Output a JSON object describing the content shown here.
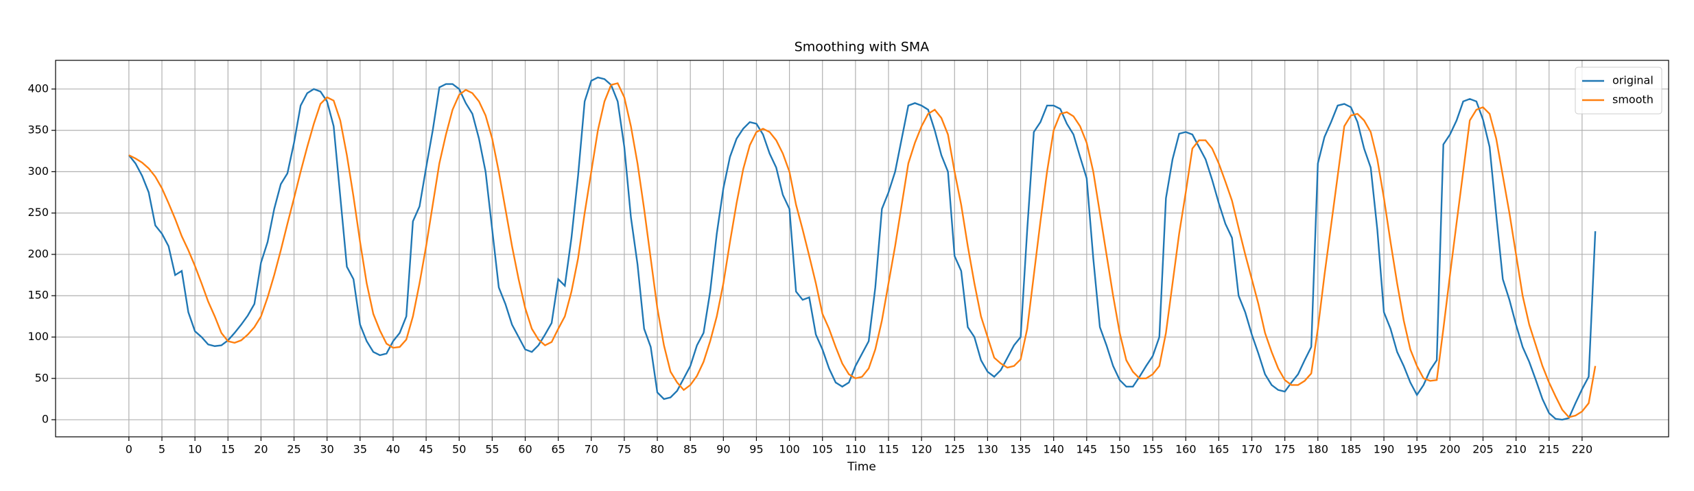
{
  "chart_data": {
    "type": "line",
    "title": "Smoothing with SMA",
    "x_label": "Time",
    "x": [
      0,
      1,
      2,
      3,
      4,
      5,
      6,
      7,
      8,
      9,
      10,
      11,
      12,
      13,
      14,
      15,
      16,
      17,
      18,
      19,
      20,
      21,
      22,
      23,
      24,
      25,
      26,
      27,
      28,
      29,
      30,
      31,
      32,
      33,
      34,
      35,
      36,
      37,
      38,
      39,
      40,
      41,
      42,
      43,
      44,
      45,
      46,
      47,
      48,
      49,
      50,
      51,
      52,
      53,
      54,
      55,
      56,
      57,
      58,
      59,
      60,
      61,
      62,
      63,
      64,
      65,
      66,
      67,
      68,
      69,
      70,
      71,
      72,
      73,
      74,
      75,
      76,
      77,
      78,
      79,
      80,
      81,
      82,
      83,
      84,
      85,
      86,
      87,
      88,
      89,
      90,
      91,
      92,
      93,
      94,
      95,
      96,
      97,
      98,
      99,
      100,
      101,
      102,
      103,
      104,
      105,
      106,
      107,
      108,
      109,
      110,
      111,
      112,
      113,
      114,
      115,
      116,
      117,
      118,
      119,
      120,
      121,
      122,
      123,
      124,
      125,
      126,
      127,
      128,
      129,
      130,
      131,
      132,
      133,
      134,
      135,
      136,
      137,
      138,
      139,
      140,
      141,
      142,
      143,
      144,
      145,
      146,
      147,
      148,
      149,
      150,
      151,
      152,
      153,
      154,
      155,
      156,
      157,
      158,
      159,
      160,
      161,
      162,
      163,
      164,
      165,
      166,
      167,
      168,
      169,
      170,
      171,
      172,
      173,
      174,
      175,
      176,
      177,
      178,
      179,
      180,
      181,
      182,
      183,
      184,
      185,
      186,
      187,
      188,
      189,
      190,
      191,
      192,
      193,
      194,
      195,
      196,
      197,
      198,
      199,
      200,
      201,
      202,
      203,
      204,
      205,
      206,
      207,
      208,
      209,
      210,
      211,
      212,
      213,
      214,
      215,
      216,
      217,
      218,
      219,
      220,
      221,
      222
    ],
    "series": [
      {
        "name": "original",
        "color": "#1f77b4",
        "values": [
          320,
          310,
          295,
          275,
          235,
          225,
          210,
          175,
          180,
          130,
          107,
          100,
          91,
          89,
          90,
          96,
          105,
          115,
          126,
          140,
          190,
          215,
          255,
          285,
          298,
          335,
          380,
          395,
          400,
          397,
          385,
          355,
          270,
          185,
          170,
          115,
          95,
          82,
          78,
          80,
          95,
          105,
          125,
          240,
          258,
          305,
          350,
          402,
          406,
          406,
          400,
          383,
          370,
          340,
          300,
          230,
          160,
          140,
          115,
          100,
          85,
          82,
          90,
          103,
          117,
          170,
          162,
          220,
          295,
          385,
          410,
          414,
          412,
          405,
          385,
          330,
          245,
          188,
          110,
          88,
          33,
          25,
          27,
          35,
          50,
          65,
          90,
          105,
          155,
          225,
          280,
          318,
          340,
          352,
          360,
          358,
          345,
          322,
          305,
          272,
          255,
          155,
          145,
          148,
          103,
          85,
          62,
          45,
          40,
          45,
          65,
          80,
          95,
          160,
          255,
          275,
          300,
          340,
          380,
          383,
          380,
          375,
          350,
          320,
          300,
          198,
          180,
          112,
          100,
          72,
          58,
          52,
          60,
          75,
          90,
          100,
          230,
          348,
          360,
          380,
          380,
          376,
          358,
          345,
          318,
          292,
          195,
          112,
          90,
          65,
          48,
          40,
          40,
          52,
          65,
          77,
          100,
          268,
          315,
          346,
          348,
          345,
          330,
          315,
          290,
          262,
          237,
          220,
          150,
          130,
          103,
          80,
          55,
          42,
          36,
          34,
          45,
          55,
          72,
          88,
          310,
          342,
          360,
          380,
          382,
          378,
          360,
          328,
          305,
          230,
          130,
          110,
          82,
          65,
          45,
          30,
          42,
          60,
          72,
          333,
          345,
          362,
          385,
          388,
          385,
          363,
          330,
          248,
          170,
          145,
          115,
          88,
          70,
          48,
          25,
          8,
          1,
          0,
          2,
          20,
          37,
          52,
          228
        ]
      },
      {
        "name": "smooth",
        "color": "#ff7f0e",
        "values": [
          320,
          316,
          311,
          304,
          294,
          280,
          262,
          243,
          222,
          205,
          186,
          165,
          143,
          125,
          105,
          95,
          93,
          96,
          103,
          112,
          125,
          148,
          175,
          205,
          237,
          268,
          300,
          330,
          358,
          382,
          390,
          386,
          362,
          320,
          270,
          215,
          165,
          128,
          108,
          92,
          87,
          88,
          97,
          125,
          165,
          210,
          260,
          310,
          345,
          375,
          393,
          399,
          395,
          385,
          368,
          340,
          300,
          255,
          210,
          170,
          135,
          110,
          97,
          90,
          94,
          110,
          125,
          155,
          195,
          250,
          300,
          350,
          385,
          405,
          407,
          390,
          355,
          310,
          255,
          195,
          135,
          90,
          58,
          45,
          36,
          42,
          53,
          70,
          95,
          125,
          165,
          215,
          262,
          303,
          332,
          348,
          352,
          348,
          338,
          322,
          300,
          260,
          230,
          198,
          165,
          128,
          110,
          88,
          68,
          55,
          50,
          52,
          62,
          85,
          120,
          165,
          210,
          260,
          310,
          335,
          355,
          370,
          375,
          365,
          345,
          300,
          260,
          210,
          165,
          125,
          100,
          75,
          68,
          63,
          65,
          73,
          110,
          175,
          240,
          300,
          350,
          370,
          372,
          367,
          355,
          335,
          300,
          250,
          200,
          150,
          105,
          72,
          58,
          50,
          50,
          55,
          65,
          105,
          165,
          225,
          275,
          328,
          338,
          338,
          328,
          310,
          288,
          265,
          232,
          200,
          170,
          140,
          105,
          82,
          62,
          48,
          42,
          42,
          47,
          56,
          110,
          175,
          235,
          295,
          355,
          368,
          370,
          362,
          348,
          315,
          268,
          215,
          165,
          120,
          85,
          65,
          50,
          47,
          48,
          110,
          175,
          238,
          300,
          362,
          375,
          378,
          370,
          340,
          295,
          250,
          200,
          150,
          115,
          90,
          65,
          45,
          28,
          12,
          3,
          5,
          10,
          20,
          65
        ]
      }
    ],
    "xlim": [
      -11.1,
      233.1
    ],
    "ylim": [
      -20.7,
      434.7
    ],
    "xticks": [
      0,
      5,
      10,
      15,
      20,
      25,
      30,
      35,
      40,
      45,
      50,
      55,
      60,
      65,
      70,
      75,
      80,
      85,
      90,
      95,
      100,
      105,
      110,
      115,
      120,
      125,
      130,
      135,
      140,
      145,
      150,
      155,
      160,
      165,
      170,
      175,
      180,
      185,
      190,
      195,
      200,
      205,
      210,
      215,
      220
    ],
    "yticks": [
      0,
      50,
      100,
      150,
      200,
      250,
      300,
      350,
      400
    ],
    "grid": true,
    "legend": "upper right"
  }
}
